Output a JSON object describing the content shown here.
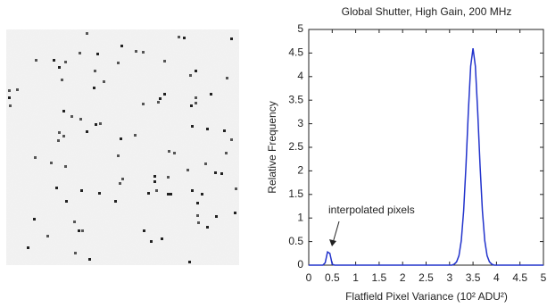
{
  "chart_data": {
    "type": "line",
    "title": "Global Shutter, High Gain, 200 MHz",
    "x_label": "Flatfield Pixel Variance (10² ADU²)",
    "y_label": "Relative Frequency",
    "annotation": "interpolated pixels",
    "x": [
      0,
      0.3,
      0.35,
      0.4,
      0.45,
      0.5,
      0.55,
      3.05,
      3.1,
      3.15,
      3.2,
      3.25,
      3.3,
      3.35,
      3.4,
      3.45,
      3.5,
      3.55,
      3.6,
      3.65,
      3.7,
      3.75,
      3.8,
      3.85,
      3.9,
      3.95,
      5
    ],
    "values": [
      0,
      0,
      0.05,
      0.28,
      0.25,
      0.02,
      0,
      0,
      0.02,
      0.07,
      0.2,
      0.52,
      1.15,
      2.11,
      3.25,
      4.22,
      4.6,
      4.22,
      3.25,
      2.11,
      1.15,
      0.52,
      0.2,
      0.07,
      0.02,
      0,
      0
    ],
    "color": "#2233cc",
    "xlim": [
      0,
      5
    ],
    "xticks": [
      0,
      0.5,
      1,
      1.5,
      2,
      2.5,
      3,
      3.5,
      4,
      4.5,
      5
    ],
    "ylim": [
      0,
      5
    ],
    "yticks": [
      0,
      0.5,
      1,
      1.5,
      2,
      2.5,
      3,
      3.5,
      4,
      4.5,
      5
    ]
  }
}
